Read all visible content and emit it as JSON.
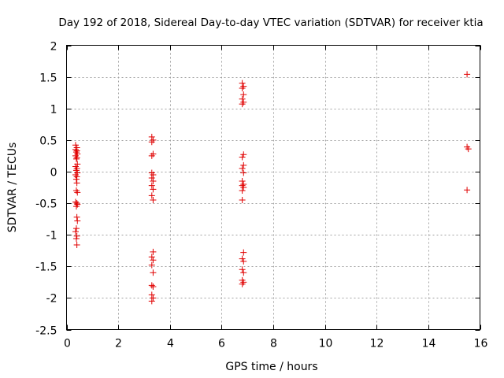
{
  "chart_data": {
    "type": "scatter",
    "title": "Day 192 of 2018, Sidereal Day-to-day VTEC variation (SDTVAR) for receiver ktia",
    "xlabel": "GPS time / hours",
    "ylabel": "SDTVAR / TECUs",
    "xlim": [
      0,
      16
    ],
    "ylim": [
      -2.5,
      2
    ],
    "xticks": [
      0,
      2,
      4,
      6,
      8,
      10,
      12,
      14,
      16
    ],
    "xtick_labels": [
      "0",
      "2",
      "4",
      "6",
      "8",
      "10",
      "12",
      "14",
      "16"
    ],
    "yticks": [
      2,
      1.5,
      1,
      0.5,
      0,
      -0.5,
      -1,
      -1.5,
      -2,
      -2.5
    ],
    "ytick_labels": [
      "2",
      "1.5",
      "1",
      "0.5",
      "0",
      "-0.5",
      "-1",
      "-1.5",
      "-2",
      "-2.5"
    ],
    "grid": true,
    "marker": "plus",
    "color": "#e00000",
    "points": [
      [
        0.35,
        0.42
      ],
      [
        0.4,
        0.38
      ],
      [
        0.35,
        0.35
      ],
      [
        0.4,
        0.33
      ],
      [
        0.38,
        0.31
      ],
      [
        0.42,
        0.28
      ],
      [
        0.35,
        0.25
      ],
      [
        0.4,
        0.22
      ],
      [
        0.38,
        0.2
      ],
      [
        0.42,
        0.12
      ],
      [
        0.35,
        0.08
      ],
      [
        0.4,
        0.05
      ],
      [
        0.38,
        0.02
      ],
      [
        0.42,
        -0.02
      ],
      [
        0.35,
        -0.05
      ],
      [
        0.4,
        -0.08
      ],
      [
        0.38,
        -0.12
      ],
      [
        0.4,
        -0.18
      ],
      [
        0.38,
        -0.3
      ],
      [
        0.42,
        -0.33
      ],
      [
        0.35,
        -0.48
      ],
      [
        0.4,
        -0.5
      ],
      [
        0.42,
        -0.52
      ],
      [
        0.38,
        -0.55
      ],
      [
        0.4,
        -0.72
      ],
      [
        0.42,
        -0.78
      ],
      [
        0.38,
        -0.9
      ],
      [
        0.35,
        -0.95
      ],
      [
        0.4,
        -1.02
      ],
      [
        0.38,
        -1.06
      ],
      [
        0.4,
        -1.16
      ],
      [
        3.3,
        0.55
      ],
      [
        3.35,
        0.5
      ],
      [
        3.3,
        0.47
      ],
      [
        3.35,
        0.28
      ],
      [
        3.3,
        0.25
      ],
      [
        3.3,
        -0.02
      ],
      [
        3.35,
        -0.05
      ],
      [
        3.3,
        -0.1
      ],
      [
        3.35,
        -0.15
      ],
      [
        3.3,
        -0.22
      ],
      [
        3.35,
        -0.28
      ],
      [
        3.3,
        -0.38
      ],
      [
        3.35,
        -0.45
      ],
      [
        3.35,
        -1.27
      ],
      [
        3.3,
        -1.35
      ],
      [
        3.35,
        -1.4
      ],
      [
        3.3,
        -1.48
      ],
      [
        3.35,
        -1.6
      ],
      [
        3.3,
        -1.8
      ],
      [
        3.35,
        -1.82
      ],
      [
        3.3,
        -1.95
      ],
      [
        3.35,
        -2.0
      ],
      [
        3.3,
        -2.05
      ],
      [
        6.8,
        1.4
      ],
      [
        6.85,
        1.35
      ],
      [
        6.8,
        1.32
      ],
      [
        6.85,
        1.22
      ],
      [
        6.8,
        1.15
      ],
      [
        6.85,
        1.1
      ],
      [
        6.8,
        1.07
      ],
      [
        6.85,
        0.27
      ],
      [
        6.8,
        0.23
      ],
      [
        6.85,
        0.1
      ],
      [
        6.8,
        0.05
      ],
      [
        6.85,
        -0.02
      ],
      [
        6.8,
        -0.15
      ],
      [
        6.85,
        -0.2
      ],
      [
        6.8,
        -0.22
      ],
      [
        6.85,
        -0.25
      ],
      [
        6.8,
        -0.3
      ],
      [
        6.8,
        -0.45
      ],
      [
        6.85,
        -1.28
      ],
      [
        6.8,
        -1.38
      ],
      [
        6.85,
        -1.42
      ],
      [
        6.8,
        -1.55
      ],
      [
        6.85,
        -1.6
      ],
      [
        6.8,
        -1.72
      ],
      [
        6.85,
        -1.75
      ],
      [
        6.8,
        -1.78
      ],
      [
        15.5,
        1.54
      ],
      [
        15.5,
        0.39
      ],
      [
        15.55,
        0.36
      ],
      [
        15.5,
        -0.29
      ]
    ]
  }
}
